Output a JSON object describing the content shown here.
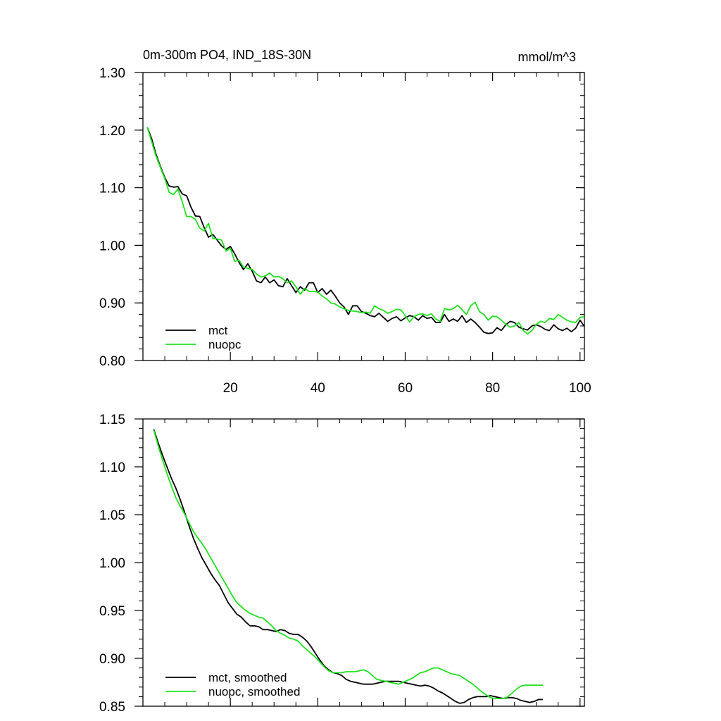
{
  "chart_data": [
    {
      "type": "line",
      "title": "0m-300m PO4, IND_18S-30N",
      "units": "mmol/m^3",
      "xlabel": "",
      "ylabel": "",
      "xlim": [
        0,
        101
      ],
      "ylim": [
        0.8,
        1.3
      ],
      "xticks": [
        20,
        40,
        60,
        80,
        100
      ],
      "xtick_labels": [
        "20",
        "40",
        "60",
        "80",
        "100"
      ],
      "yticks": [
        0.8,
        0.9,
        1.0,
        1.1,
        1.2,
        1.3
      ],
      "ytick_labels": [
        "0.80",
        "0.90",
        "1.00",
        "1.10",
        "1.20",
        "1.30"
      ],
      "legend_position": "bottom-left",
      "series": [
        {
          "name": "mct",
          "color": "#000000",
          "x_start": 1,
          "values": [
            1.205,
            1.185,
            1.158,
            1.137,
            1.118,
            1.103,
            1.101,
            1.102,
            1.089,
            1.086,
            1.066,
            1.051,
            1.05,
            1.031,
            1.014,
            1.019,
            1.009,
            0.999,
            0.993,
            0.998,
            0.985,
            0.97,
            0.958,
            0.968,
            0.955,
            0.938,
            0.935,
            0.945,
            0.935,
            0.94,
            0.93,
            0.928,
            0.942,
            0.93,
            0.918,
            0.928,
            0.922,
            0.935,
            0.935,
            0.918,
            0.925,
            0.915,
            0.922,
            0.912,
            0.9,
            0.893,
            0.88,
            0.895,
            0.895,
            0.885,
            0.882,
            0.878,
            0.876,
            0.882,
            0.875,
            0.868,
            0.873,
            0.876,
            0.869,
            0.874,
            0.878,
            0.876,
            0.87,
            0.878,
            0.873,
            0.875,
            0.866,
            0.866,
            0.88,
            0.868,
            0.872,
            0.868,
            0.878,
            0.866,
            0.872,
            0.866,
            0.858,
            0.849,
            0.847,
            0.848,
            0.857,
            0.852,
            0.862,
            0.868,
            0.866,
            0.858,
            0.855,
            0.853,
            0.86,
            0.862,
            0.859,
            0.854,
            0.852,
            0.862,
            0.855,
            0.852,
            0.856,
            0.85,
            0.856,
            0.87,
            0.859
          ]
        },
        {
          "name": "nuopc",
          "color": "#1fe21f",
          "x_start": 1,
          "values": [
            1.205,
            1.18,
            1.155,
            1.135,
            1.116,
            1.092,
            1.088,
            1.098,
            1.075,
            1.05,
            1.05,
            1.045,
            1.03,
            1.025,
            1.038,
            1.012,
            1.011,
            1.009,
            0.99,
            0.995,
            0.972,
            0.974,
            0.962,
            0.96,
            0.958,
            0.95,
            0.945,
            0.947,
            0.952,
            0.945,
            0.946,
            0.942,
            0.935,
            0.938,
            0.928,
            0.915,
            0.925,
            0.92,
            0.92,
            0.919,
            0.912,
            0.907,
            0.9,
            0.898,
            0.893,
            0.89,
            0.887,
            0.886,
            0.885,
            0.883,
            0.884,
            0.882,
            0.895,
            0.89,
            0.887,
            0.882,
            0.885,
            0.889,
            0.888,
            0.878,
            0.867,
            0.876,
            0.88,
            0.881,
            0.878,
            0.881,
            0.872,
            0.868,
            0.89,
            0.888,
            0.89,
            0.896,
            0.888,
            0.88,
            0.895,
            0.901,
            0.885,
            0.88,
            0.87,
            0.877,
            0.876,
            0.87,
            0.863,
            0.858,
            0.86,
            0.866,
            0.852,
            0.846,
            0.852,
            0.863,
            0.868,
            0.866,
            0.873,
            0.871,
            0.88,
            0.875,
            0.87,
            0.867,
            0.866,
            0.875,
            0.876
          ]
        }
      ]
    },
    {
      "type": "line",
      "title": "",
      "xlabel": "",
      "ylabel": "",
      "xlim": [
        0,
        101
      ],
      "ylim": [
        0.85,
        1.15
      ],
      "xticks": [
        20,
        40,
        60,
        80,
        100
      ],
      "xtick_labels": [],
      "yticks": [
        0.85,
        0.9,
        0.95,
        1.0,
        1.05,
        1.1,
        1.15
      ],
      "ytick_labels": [
        "0.85",
        "0.90",
        "0.95",
        "1.00",
        "1.05",
        "1.10",
        "1.15"
      ],
      "legend_position": "bottom-left",
      "series": [
        {
          "name": "mct, smoothed",
          "color": "#000000",
          "x_start": 2.5,
          "values": [
            1.139,
            1.125,
            1.112,
            1.1,
            1.088,
            1.078,
            1.066,
            1.053,
            1.039,
            1.026,
            1.015,
            1.005,
            0.997,
            0.989,
            0.982,
            0.976,
            0.967,
            0.958,
            0.952,
            0.946,
            0.943,
            0.938,
            0.934,
            0.934,
            0.933,
            0.93,
            0.93,
            0.929,
            0.928,
            0.93,
            0.929,
            0.926,
            0.925,
            0.925,
            0.922,
            0.918,
            0.912,
            0.905,
            0.898,
            0.892,
            0.888,
            0.885,
            0.884,
            0.882,
            0.878,
            0.876,
            0.875,
            0.874,
            0.873,
            0.873,
            0.873,
            0.874,
            0.875,
            0.876,
            0.876,
            0.876,
            0.876,
            0.875,
            0.874,
            0.873,
            0.872,
            0.871,
            0.872,
            0.871,
            0.869,
            0.866,
            0.864,
            0.861,
            0.858,
            0.855,
            0.853,
            0.854,
            0.857,
            0.859,
            0.86,
            0.86,
            0.86,
            0.861,
            0.86,
            0.859,
            0.858,
            0.859,
            0.859,
            0.858,
            0.856,
            0.855,
            0.854,
            0.855,
            0.857,
            0.857
          ]
        },
        {
          "name": "nuopc, smoothed",
          "color": "#1fe21f",
          "x_start": 2.5,
          "values": [
            1.138,
            1.122,
            1.107,
            1.093,
            1.08,
            1.068,
            1.059,
            1.051,
            1.042,
            1.033,
            1.026,
            1.02,
            1.013,
            1.005,
            0.997,
            0.989,
            0.981,
            0.973,
            0.965,
            0.958,
            0.954,
            0.95,
            0.947,
            0.945,
            0.943,
            0.942,
            0.938,
            0.934,
            0.929,
            0.926,
            0.924,
            0.921,
            0.92,
            0.918,
            0.913,
            0.909,
            0.905,
            0.901,
            0.896,
            0.891,
            0.887,
            0.885,
            0.885,
            0.885,
            0.886,
            0.886,
            0.886,
            0.887,
            0.888,
            0.886,
            0.882,
            0.878,
            0.877,
            0.876,
            0.875,
            0.874,
            0.873,
            0.875,
            0.877,
            0.879,
            0.882,
            0.885,
            0.886,
            0.888,
            0.89,
            0.89,
            0.888,
            0.886,
            0.884,
            0.883,
            0.882,
            0.879,
            0.876,
            0.873,
            0.869,
            0.865,
            0.862,
            0.859,
            0.858,
            0.858,
            0.858,
            0.86,
            0.864,
            0.868,
            0.871,
            0.872,
            0.872,
            0.872,
            0.872,
            0.872
          ]
        }
      ]
    }
  ]
}
